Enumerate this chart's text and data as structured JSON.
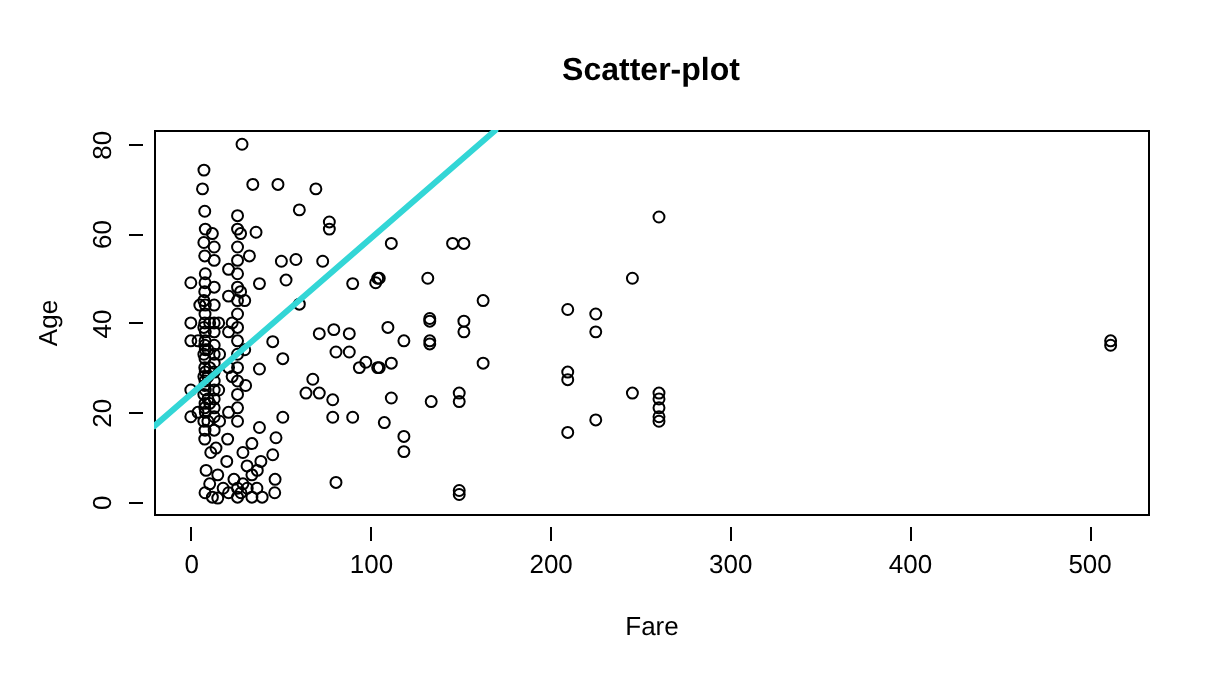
{
  "chart_data": {
    "type": "scatter",
    "title": "Scatter-plot",
    "xlabel": "Fare",
    "ylabel": "Age",
    "xlim": [
      -20.5,
      532.8
    ],
    "ylim": [
      -2.76,
      83.18
    ],
    "xticks": [
      0,
      100,
      200,
      300,
      400,
      500
    ],
    "yticks": [
      0,
      20,
      40,
      60,
      80
    ],
    "grid": false,
    "marker": "circle",
    "series": [
      {
        "color": "#000000",
        "x": [
          28.5,
          7.3,
          34.5,
          48.5,
          69.6,
          60.4,
          77.1,
          77.1,
          104,
          104,
          80.8,
          46.7,
          50.4,
          58.5,
          73.4,
          90.1,
          53,
          60.4,
          71.5,
          79.6,
          88.2,
          80.8,
          88.2,
          45.6,
          51.2,
          64.1,
          71.5,
          79,
          90.1,
          79,
          51.2,
          47.4,
          45.6,
          38.2,
          97.4,
          67.9,
          38.2,
          38.2,
          36.3,
          32.6,
          0,
          0,
          0,
          0,
          0,
          111.6,
          145.7,
          152,
          104.9,
          102.9,
          131.9,
          162.7,
          109.7,
          118.6,
          133,
          133,
          133,
          133,
          152,
          152,
          93.8,
          104.9,
          111.6,
          162.7,
          111.6,
          133.8,
          149.4,
          149.4,
          107.7,
          118.6,
          118.6,
          149.4,
          149.4,
          260.6,
          245.8,
          209.8,
          225.4,
          225.4,
          209.8,
          209.8,
          245.8,
          260.6,
          260.6,
          260.6,
          260.6,
          260.6,
          225.4,
          209.8,
          512,
          512,
          7.75,
          7.9,
          7.25,
          8.05,
          7.75,
          7.9,
          7.25,
          8.05,
          7.75,
          7.9,
          7.25,
          8.05,
          7.75,
          7.9,
          7.25,
          8.05,
          7.75,
          7.9,
          8.05,
          7.25,
          7.75,
          7.9,
          8.05,
          7.25,
          7.75,
          7.9,
          8.05,
          7.75,
          7.25,
          8.05,
          7.75,
          6.5,
          9.5,
          9.5,
          9.5,
          9.5,
          10.5,
          10.5,
          10.5,
          4,
          4,
          5,
          13,
          13,
          13,
          13,
          13,
          13,
          13,
          13,
          13,
          13,
          13,
          13,
          13,
          13,
          13,
          13,
          12,
          15.5,
          15.5,
          16,
          16,
          26,
          26,
          26,
          26,
          26,
          26,
          26,
          26,
          26,
          26,
          26,
          26,
          26,
          26,
          26,
          26,
          26,
          26,
          27.7,
          27.7,
          30,
          30,
          30.5,
          21,
          21,
          21,
          21,
          21,
          23,
          23,
          7.9,
          10.5,
          12,
          15,
          15,
          18,
          20,
          21,
          24,
          27.9,
          29,
          31.4,
          31.3,
          34,
          34,
          36.8,
          39.7,
          39,
          46.9,
          11.1,
          14,
          20.5,
          29,
          34,
          37,
          8.5
        ],
        "values": [
          80,
          74.2,
          71,
          71,
          70,
          65.3,
          62.6,
          61,
          50,
          30,
          4.3,
          2,
          53.8,
          54.2,
          53.8,
          48.8,
          49.6,
          44.2,
          37.6,
          38.5,
          37.6,
          33.5,
          33.5,
          35.8,
          32,
          24.3,
          24.3,
          22.8,
          18.9,
          18.9,
          18.9,
          14.3,
          10.5,
          16.6,
          31.2,
          27.4,
          29.7,
          48.8,
          60.3,
          55,
          40,
          36,
          49,
          25,
          19,
          57.8,
          57.8,
          57.8,
          50,
          49,
          50,
          45,
          39,
          36,
          41,
          40.4,
          36,
          35.3,
          40.4,
          38,
          30,
          30,
          31,
          31,
          23.2,
          22.4,
          24.3,
          22.4,
          17.7,
          14.6,
          11.2,
          2.5,
          1.6,
          63.7,
          50,
          43,
          42,
          38,
          29,
          27.3,
          24.3,
          24.3,
          23,
          21,
          19,
          18,
          18.3,
          15.5,
          35,
          36,
          14,
          16,
          18,
          20,
          21,
          22,
          24,
          25,
          26,
          27,
          28,
          29,
          30,
          32,
          33,
          34,
          35,
          36,
          38,
          39,
          40,
          42,
          44,
          45,
          47,
          49,
          51,
          55,
          58,
          61,
          65,
          70,
          18,
          23,
          28,
          34,
          22,
          30,
          40,
          36,
          20,
          44,
          16,
          19,
          21,
          23,
          25,
          27,
          29,
          31,
          33,
          35,
          38,
          40,
          44,
          48,
          54,
          57,
          60,
          25,
          40,
          18,
          33,
          1,
          3,
          18,
          21,
          24,
          27,
          30,
          33,
          36,
          39,
          42,
          45,
          48,
          51,
          54,
          57,
          61,
          64,
          47,
          60,
          34,
          45,
          26,
          20,
          30,
          38,
          46,
          52,
          28,
          40,
          2,
          4,
          1,
          0.8,
          6,
          3,
          9,
          2,
          5,
          2,
          4,
          3,
          8,
          1,
          6,
          3,
          1,
          9,
          5,
          11,
          12,
          14,
          11,
          13,
          7,
          7
        ]
      },
      {
        "type": "line",
        "marker": "none",
        "line_style": "solid",
        "color": "#33d6d6",
        "x": [
          -20.4,
          169.5
        ],
        "values": [
          16.9,
          83.1
        ]
      }
    ]
  }
}
